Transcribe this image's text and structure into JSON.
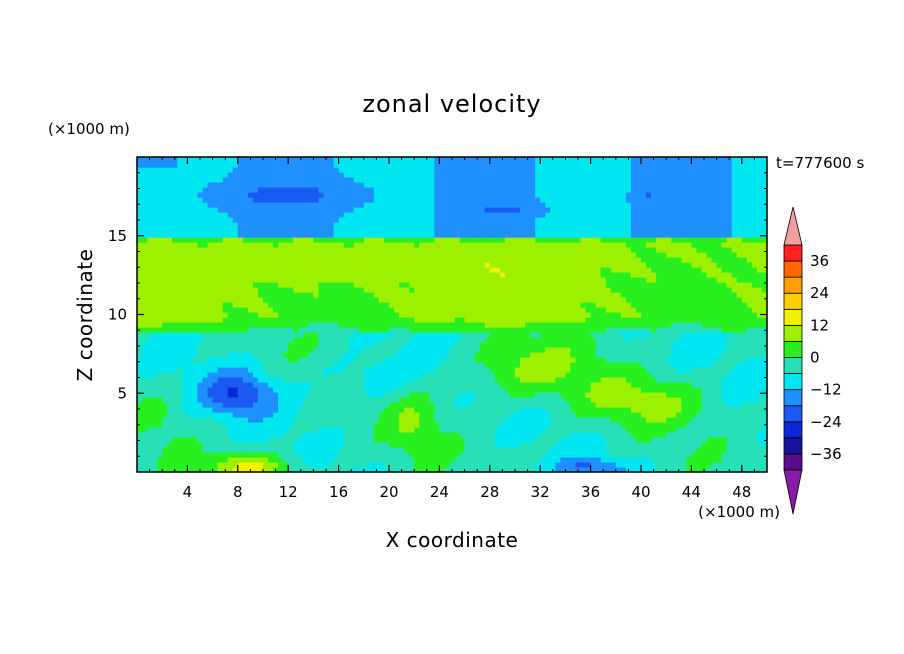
{
  "chart_data": {
    "type": "heatmap",
    "title": "zonal velocity",
    "xlabel": "X coordinate",
    "ylabel": "Z coordinate",
    "x_unit": "(×1000 m)",
    "y_unit": "(×1000 m)",
    "time_label": "t=777600 s",
    "xlim": [
      0,
      50
    ],
    "ylim": [
      0,
      20
    ],
    "x_ticks": [
      4,
      8,
      12,
      16,
      20,
      24,
      28,
      32,
      36,
      40,
      44,
      48
    ],
    "y_ticks": [
      5,
      10,
      15
    ],
    "colorbar": {
      "levels": [
        -42,
        -36,
        -30,
        -24,
        -18,
        -12,
        -6,
        0,
        6,
        12,
        18,
        24,
        30,
        36,
        42
      ],
      "tick_labels": [
        "36",
        "24",
        "12",
        "0",
        "−12",
        "−24",
        "−36"
      ],
      "tick_values": [
        36,
        24,
        12,
        0,
        -12,
        -24,
        -36
      ],
      "band_colors": [
        "#5a0a8a",
        "#1a10a0",
        "#0a28d8",
        "#1a5af0",
        "#1e90ff",
        "#00e6f0",
        "#28e0b8",
        "#28f020",
        "#9cf000",
        "#f0f000",
        "#ffd000",
        "#ffa000",
        "#ff6800",
        "#ff2020",
        "#d00000"
      ],
      "under_color": "#8a1aa8",
      "over_color": "#f0a0a0"
    },
    "regions": [
      {
        "feature": "upper layer",
        "z_range": [
          15,
          20
        ],
        "value": -12
      },
      {
        "feature": "negative core near top",
        "x": 12,
        "z": 17.5,
        "value": -18
      },
      {
        "feature": "negative core near top",
        "x": 29,
        "z": 16.7,
        "value": -18
      },
      {
        "feature": "shear layer",
        "z_range": [
          9,
          15
        ],
        "value": 10
      },
      {
        "feature": "jet maximum",
        "x": 13,
        "z": 13,
        "value": 13
      },
      {
        "feature": "lower layer",
        "z_range": [
          0,
          9
        ],
        "value": -6
      },
      {
        "feature": "vortex minimum",
        "x": 8,
        "z": 5,
        "value": -24
      },
      {
        "feature": "surface maximum",
        "x": 9,
        "z": 0.3,
        "value": 14
      },
      {
        "feature": "surface minimum",
        "x": 36,
        "z": 0.3,
        "value": -18
      }
    ]
  }
}
